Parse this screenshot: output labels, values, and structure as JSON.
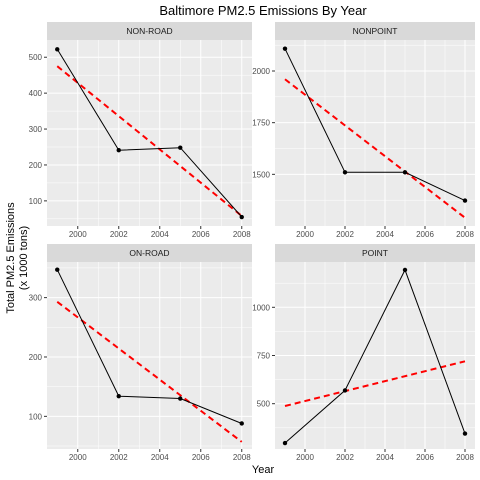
{
  "chart_data": {
    "type": "line",
    "title": "Baltimore PM2.5 Emissions By Year",
    "xlabel": "Year",
    "ylabel": [
      "Total PM2.5 Emissions",
      "(x 1000 tons)"
    ],
    "x_ticks": [
      2000,
      2002,
      2004,
      2006,
      2008
    ],
    "xlim": [
      1998.5,
      2008.5
    ],
    "grid": true,
    "facets": [
      {
        "label": "NON-ROAD",
        "x": [
          1999,
          2002,
          2005,
          2008
        ],
        "y": [
          522,
          241,
          248,
          55
        ],
        "trend": {
          "y_start": 475,
          "y_end": 58
        },
        "ylim": [
          30,
          548
        ],
        "y_ticks": [
          100,
          200,
          300,
          400,
          500
        ]
      },
      {
        "label": "NONPOINT",
        "x": [
          1999,
          2002,
          2005,
          2008
        ],
        "y": [
          2108,
          1510,
          1510,
          1373
        ],
        "trend": {
          "y_start": 1960,
          "y_end": 1290
        },
        "ylim": [
          1250,
          2150
        ],
        "y_ticks": [
          1500,
          1750,
          2000
        ]
      },
      {
        "label": "ON-ROAD",
        "x": [
          1999,
          2002,
          2005,
          2008
        ],
        "y": [
          347,
          134,
          130,
          88
        ],
        "trend": {
          "y_start": 293,
          "y_end": 57
        },
        "ylim": [
          45,
          360
        ],
        "y_ticks": [
          100,
          200,
          300
        ]
      },
      {
        "label": "POINT",
        "x": [
          1999,
          2002,
          2005,
          2008
        ],
        "y": [
          296,
          569,
          1194,
          345
        ],
        "trend": {
          "y_start": 488,
          "y_end": 720
        },
        "ylim": [
          265,
          1235
        ],
        "y_ticks": [
          500,
          750,
          1000
        ]
      }
    ],
    "colors": {
      "panel_bg": "#ebebeb",
      "strip_bg": "#d9d9d9",
      "grid": "#ffffff",
      "line": "#000000",
      "trend": "#ff0000"
    }
  }
}
